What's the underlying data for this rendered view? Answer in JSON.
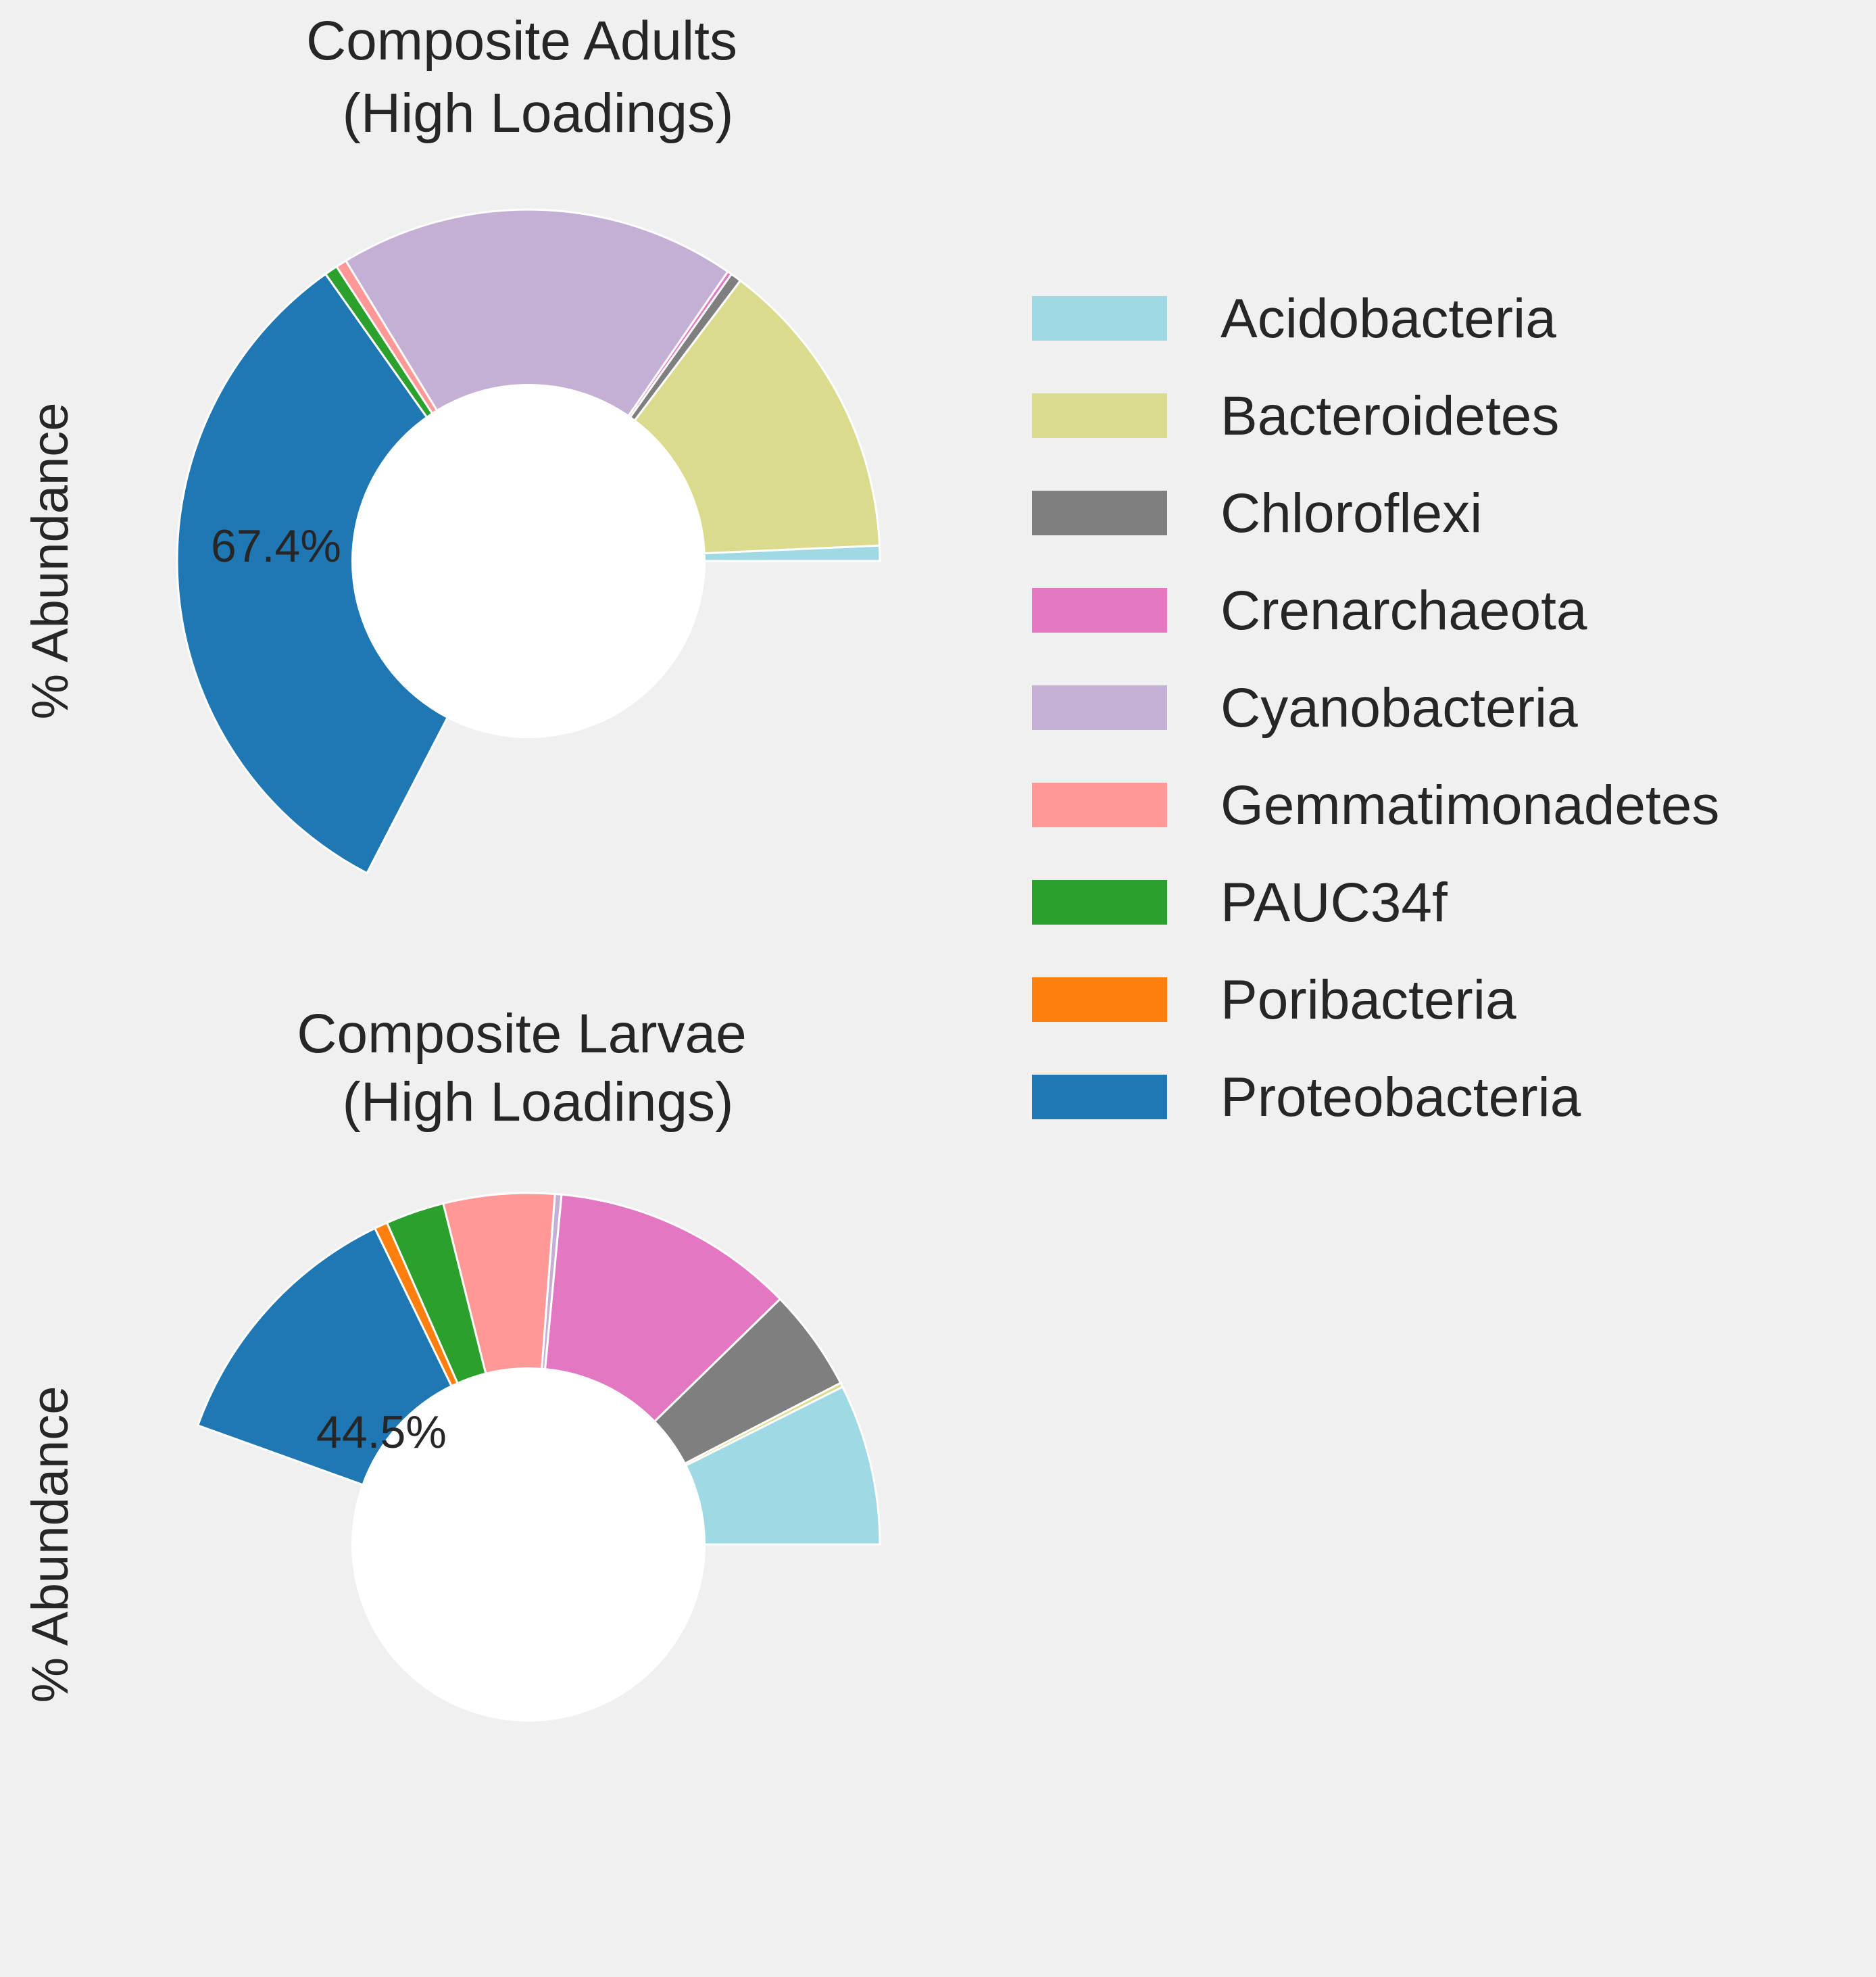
{
  "legend": {
    "position": "right",
    "entries": [
      {
        "label": "Acidobacteria",
        "color": "#9fd9e4"
      },
      {
        "label": "Bacteroidetes",
        "color": "#dbdb8e"
      },
      {
        "label": "Chloroflexi",
        "color": "#7f7f7f"
      },
      {
        "label": "Crenarchaeota",
        "color": "#e377c2"
      },
      {
        "label": "Cyanobacteria",
        "color": "#c5b0d5"
      },
      {
        "label": "Gemmatimonadetes",
        "color": "#ff9896"
      },
      {
        "label": "PAUC34f",
        "color": "#2ca02c"
      },
      {
        "label": "Poribacteria",
        "color": "#ff7f0e"
      },
      {
        "label": "Proteobacteria",
        "color": "#1f77b4"
      }
    ]
  },
  "chart_data": [
    {
      "type": "pie",
      "style": "donut",
      "title": "Composite Adults\n(High Loadings)",
      "ylabel": "% Abundance",
      "center_label": "67.4%",
      "categories": [
        "Acidobacteria",
        "Bacteroidetes",
        "Chloroflexi",
        "Crenarchaeota",
        "Cyanobacteria",
        "Gemmatimonadetes",
        "PAUC34f",
        "Poribacteria",
        "Proteobacteria"
      ],
      "values": [
        0.7,
        14.0,
        0.5,
        0.2,
        18.3,
        0.5,
        0.6,
        0.0,
        32.6
      ],
      "units": "% of full circle (slices sum to 67.4%)",
      "start_angle_deg": 0,
      "direction": "counterclockwise"
    },
    {
      "type": "pie",
      "style": "donut",
      "title": "Composite Larvae\n(High Loadings)",
      "ylabel": "% Abundance",
      "center_label": "44.5%",
      "categories": [
        "Acidobacteria",
        "Bacteroidetes",
        "Chloroflexi",
        "Crenarchaeota",
        "Cyanobacteria",
        "Gemmatimonadetes",
        "PAUC34f",
        "Poribacteria",
        "Proteobacteria"
      ],
      "values": [
        7.4,
        0.2,
        4.7,
        11.2,
        0.3,
        5.1,
        2.7,
        0.6,
        12.3
      ],
      "units": "% of full circle (slices sum to 44.5%)",
      "start_angle_deg": 0,
      "direction": "counterclockwise"
    }
  ]
}
